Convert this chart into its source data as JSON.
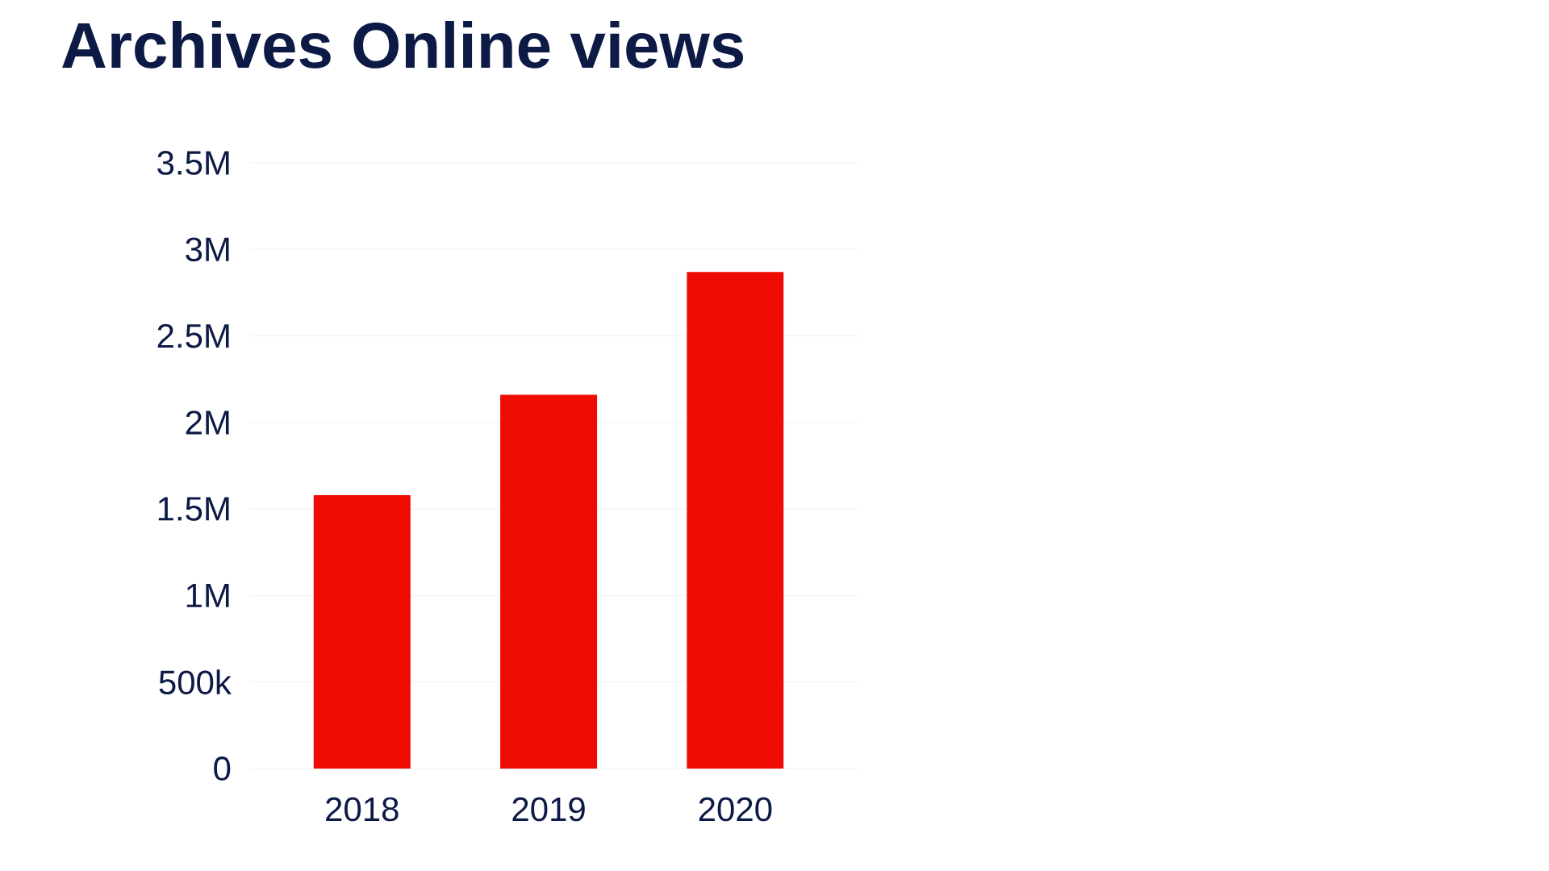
{
  "chart_data": {
    "type": "bar",
    "title": "Archives Online views",
    "categories": [
      "2018",
      "2019",
      "2020"
    ],
    "values": [
      1580000,
      2160000,
      2870000
    ],
    "color": "#ee0b03",
    "ylim": [
      0,
      3500000
    ],
    "yticks": [
      {
        "value": 0,
        "label": "0"
      },
      {
        "value": 500000,
        "label": "500k"
      },
      {
        "value": 1000000,
        "label": "1M"
      },
      {
        "value": 1500000,
        "label": "1.5M"
      },
      {
        "value": 2000000,
        "label": "2M"
      },
      {
        "value": 2500000,
        "label": "2.5M"
      },
      {
        "value": 3000000,
        "label": "3M"
      },
      {
        "value": 3500000,
        "label": "3.5M"
      }
    ],
    "grid": "y"
  }
}
